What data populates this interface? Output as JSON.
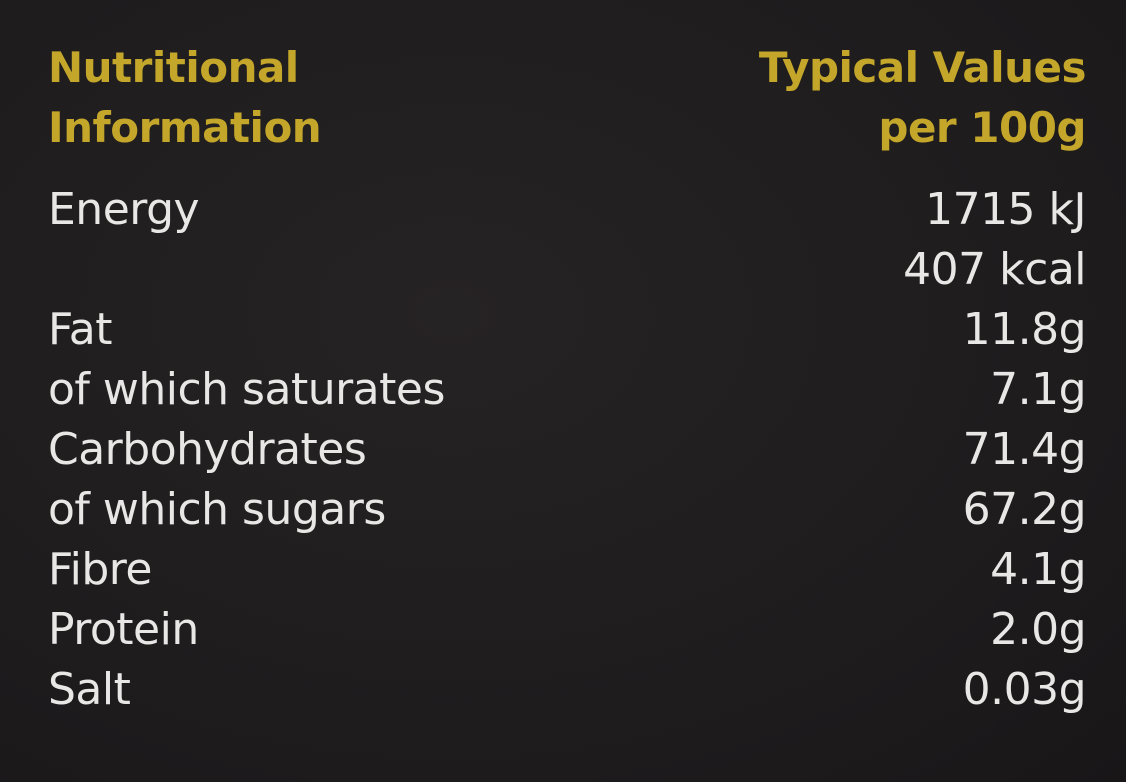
{
  "header": {
    "left_line1": "Nutritional",
    "left_line2": "Information",
    "right_line1": "Typical Values",
    "right_line2": "per 100g"
  },
  "rows": [
    {
      "label": "Energy",
      "value": "1715 kJ"
    },
    {
      "label": "",
      "value": "407 kcal"
    },
    {
      "label": "Fat",
      "value": "11.8g"
    },
    {
      "label": "of which saturates",
      "value": "7.1g"
    },
    {
      "label": "Carbohydrates",
      "value": "71.4g"
    },
    {
      "label": "of which sugars",
      "value": "67.2g"
    },
    {
      "label": "Fibre",
      "value": "4.1g"
    },
    {
      "label": "Protein",
      "value": "2.0g"
    },
    {
      "label": "Salt",
      "value": "0.03g"
    }
  ],
  "colors": {
    "background": "#1f1d1e",
    "heading": "#c4a62a",
    "text": "#e9e7e6"
  }
}
